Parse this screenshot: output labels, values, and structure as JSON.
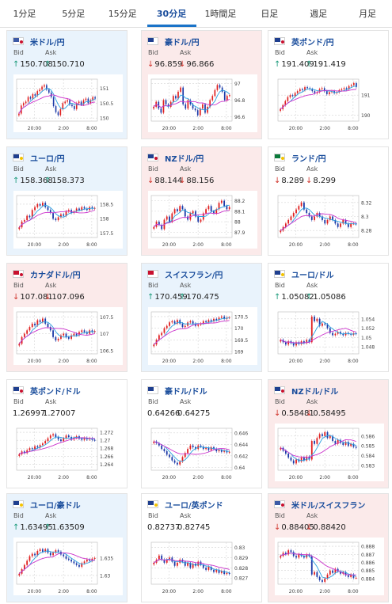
{
  "tabs": [
    {
      "label": "1分足",
      "active": false
    },
    {
      "label": "5分足",
      "active": false
    },
    {
      "label": "15分足",
      "active": false
    },
    {
      "label": "30分足",
      "active": true
    },
    {
      "label": "1時間足",
      "active": false
    },
    {
      "label": "日足",
      "active": false
    },
    {
      "label": "週足",
      "active": false
    },
    {
      "label": "月足",
      "active": false
    }
  ],
  "labels": {
    "bid": "Bid",
    "ask": "Ask"
  },
  "colors": {
    "up": "#1a9a7a",
    "down": "#d0342c",
    "candle_up": "#e02020",
    "candle_down": "#1c3aa8",
    "ma_short": "#2aa0e0",
    "ma_long": "#cc33cc",
    "card_blue": "#e9f3fc",
    "card_pink": "#fbeaea"
  },
  "cards": [
    {
      "pair": "米ドル/円",
      "flag": "us",
      "bid": "150.708",
      "ask": "150.710",
      "dir": "up",
      "bg": "blue",
      "chart": {
        "yticks": [
          "151",
          "150.5",
          "150"
        ],
        "ymin": 149.9,
        "ymax": 151.3,
        "xticks": [
          "20:00",
          "2:00",
          "8:00"
        ],
        "closes": [
          150.15,
          150.42,
          150.5,
          150.55,
          150.7,
          150.65,
          150.8,
          150.75,
          150.9,
          150.95,
          151.05,
          151.1,
          150.95,
          150.85,
          150.7,
          150.4,
          150.2,
          150.1,
          150.3,
          150.5,
          150.55,
          150.6,
          150.45,
          150.4,
          150.3,
          150.5,
          150.55,
          150.45,
          150.6,
          150.65,
          150.5,
          150.6,
          150.7,
          150.65
        ]
      }
    },
    {
      "pair": "豪ドル/円",
      "flag": "au",
      "bid": "96.859",
      "ask": "96.866",
      "dir": "down",
      "bg": "pink",
      "chart": {
        "yticks": [
          "97",
          "96.8",
          "96.6"
        ],
        "ymin": 96.55,
        "ymax": 97.05,
        "xticks": [
          "20:00",
          "2:00",
          "8:00"
        ],
        "closes": [
          96.72,
          96.78,
          96.7,
          96.65,
          96.8,
          96.75,
          96.72,
          96.78,
          96.85,
          96.82,
          96.9,
          96.95,
          96.75,
          96.7,
          96.8,
          96.75,
          96.7,
          96.68,
          96.62,
          96.7,
          96.75,
          96.65,
          96.72,
          96.8,
          96.85,
          96.92,
          96.98,
          96.95,
          96.9,
          96.8,
          96.85,
          96.86
        ]
      }
    },
    {
      "pair": "英ポンド/円",
      "flag": "gb",
      "bid": "191.409",
      "ask": "191.419",
      "dir": "up",
      "bg": "white",
      "chart": {
        "yticks": [
          "191",
          "190"
        ],
        "ymin": 189.7,
        "ymax": 191.8,
        "xticks": [
          "20:00",
          "2:00",
          "8:00"
        ],
        "closes": [
          190.3,
          190.5,
          190.7,
          190.9,
          191.0,
          190.95,
          191.1,
          191.2,
          191.3,
          191.25,
          191.4,
          191.35,
          191.3,
          191.2,
          191.1,
          191.15,
          191.3,
          191.35,
          191.2,
          191.05,
          191.15,
          191.2,
          191.1,
          191.15,
          191.25,
          191.3,
          191.35,
          191.3,
          191.45,
          191.5,
          191.6,
          191.41
        ]
      }
    },
    {
      "pair": "ユーロ/円",
      "flag": "eu",
      "bid": "158.368",
      "ask": "158.373",
      "dir": "up",
      "bg": "blue",
      "chart": {
        "yticks": [
          "158.5",
          "158",
          "157.5"
        ],
        "ymin": 157.35,
        "ymax": 158.8,
        "xticks": [
          "20:00",
          "2:00",
          "8:00"
        ],
        "closes": [
          157.7,
          157.9,
          157.95,
          158.1,
          158.05,
          158.3,
          158.4,
          158.5,
          158.45,
          158.55,
          158.4,
          158.3,
          158.2,
          158.0,
          157.95,
          158.05,
          158.15,
          158.1,
          158.25,
          158.3,
          158.2,
          158.25,
          158.35,
          158.3,
          158.4,
          158.35,
          158.3,
          158.4,
          158.35,
          158.37
        ]
      }
    },
    {
      "pair": "NZドル/円",
      "flag": "nz",
      "bid": "88.144",
      "ask": "88.156",
      "dir": "down",
      "bg": "pink",
      "chart": {
        "yticks": [
          "88.2",
          "88.1",
          "88",
          "87.9"
        ],
        "ymin": 87.85,
        "ymax": 88.25,
        "xticks": [
          "20:00",
          "2:00",
          "8:00"
        ],
        "closes": [
          87.95,
          88.0,
          87.97,
          87.93,
          88.02,
          88.05,
          88.0,
          88.08,
          88.12,
          88.1,
          88.15,
          88.12,
          88.05,
          88.02,
          88.08,
          88.1,
          88.05,
          88.0,
          88.02,
          88.08,
          88.12,
          88.15,
          88.1,
          88.08,
          88.12,
          88.18,
          88.2,
          88.15,
          88.12,
          88.14
        ]
      }
    },
    {
      "pair": "ランド/円",
      "flag": "za",
      "bid": "8.289",
      "ask": "8.299",
      "dir": "down",
      "bg": "white",
      "chart": {
        "yticks": [
          "8.32",
          "8.3",
          "8.28"
        ],
        "ymin": 8.27,
        "ymax": 8.33,
        "xticks": [
          "20:00",
          "2:00",
          "8:00"
        ],
        "closes": [
          8.28,
          8.285,
          8.29,
          8.295,
          8.3,
          8.305,
          8.31,
          8.315,
          8.32,
          8.31,
          8.305,
          8.3,
          8.295,
          8.3,
          8.305,
          8.3,
          8.295,
          8.29,
          8.295,
          8.3,
          8.295,
          8.29,
          8.285,
          8.29,
          8.295,
          8.29,
          8.285,
          8.29,
          8.29,
          8.289
        ]
      }
    },
    {
      "pair": "カナダドル/円",
      "flag": "ca",
      "bid": "107.081",
      "ask": "107.096",
      "dir": "down",
      "bg": "pink",
      "chart": {
        "yticks": [
          "107.5",
          "107",
          "106.5"
        ],
        "ymin": 106.4,
        "ymax": 107.65,
        "xticks": [
          "20:00",
          "2:00",
          "8:00"
        ],
        "closes": [
          106.7,
          106.9,
          107.0,
          107.1,
          107.2,
          107.3,
          107.25,
          107.4,
          107.35,
          107.45,
          107.3,
          107.2,
          107.1,
          106.9,
          106.8,
          106.85,
          106.95,
          107.0,
          106.9,
          106.85,
          106.95,
          107.0,
          106.95,
          107.05,
          107.1,
          107.05,
          107.0,
          107.1,
          107.05,
          107.08
        ]
      }
    },
    {
      "pair": "スイスフラン/円",
      "flag": "ch",
      "bid": "170.459",
      "ask": "170.475",
      "dir": "up",
      "bg": "blue",
      "chart": {
        "yticks": [
          "170.5",
          "170",
          "169.5",
          "169"
        ],
        "ymin": 168.9,
        "ymax": 170.7,
        "xticks": [
          "20:00",
          "2:00",
          "8:00"
        ],
        "closes": [
          169.3,
          169.5,
          169.7,
          169.8,
          170.0,
          170.1,
          170.25,
          170.3,
          170.2,
          170.35,
          170.2,
          170.05,
          170.1,
          170.25,
          170.3,
          170.2,
          170.1,
          170.15,
          170.2,
          170.3,
          170.25,
          170.35,
          170.3,
          170.4,
          170.35,
          170.45,
          170.5,
          170.4,
          170.45,
          170.46
        ]
      }
    },
    {
      "pair": "ユーロ/ドル",
      "flag": "eu",
      "bid": "1.05082",
      "ask": "1.05086",
      "dir": "up",
      "bg": "white",
      "chart": {
        "yticks": [
          "1.054",
          "1.052",
          "1.05",
          "1.048"
        ],
        "ymin": 1.0465,
        "ymax": 1.0555,
        "xticks": [
          "20:00",
          "2:00",
          "8:00"
        ],
        "closes": [
          1.0495,
          1.049,
          1.0485,
          1.0492,
          1.0488,
          1.0483,
          1.049,
          1.0486,
          1.0492,
          1.0488,
          1.0495,
          1.049,
          1.0545,
          1.0535,
          1.054,
          1.0525,
          1.053,
          1.0528,
          1.052,
          1.051,
          1.0505,
          1.0508,
          1.0512,
          1.0508,
          1.0505,
          1.051,
          1.0508,
          1.0506,
          1.0509,
          1.0508
        ]
      }
    },
    {
      "pair": "英ポンド/ドル",
      "flag": "gb",
      "bid": "1.26997",
      "ask": "1.27007",
      "dir": "none",
      "bg": "white",
      "chart": {
        "yticks": [
          "1.272",
          "1.27",
          "1.268",
          "1.266",
          "1.264"
        ],
        "ymin": 1.2625,
        "ymax": 1.273,
        "xticks": [
          "20:00",
          "2:00",
          "8:00"
        ],
        "closes": [
          1.2665,
          1.2672,
          1.2668,
          1.2675,
          1.268,
          1.2678,
          1.2685,
          1.2682,
          1.2688,
          1.2692,
          1.2698,
          1.2705,
          1.2712,
          1.2715,
          1.2708,
          1.2702,
          1.2698,
          1.2705,
          1.2712,
          1.2708,
          1.2702,
          1.2706,
          1.271,
          1.2704,
          1.2701,
          1.2706,
          1.2702,
          1.2705,
          1.2701,
          1.27
        ]
      }
    },
    {
      "pair": "豪ドル/ドル",
      "flag": "au",
      "bid": "0.64266",
      "ask": "0.64275",
      "dir": "none",
      "bg": "white",
      "chart": {
        "yticks": [
          "0.646",
          "0.644",
          "0.642",
          "0.64"
        ],
        "ymin": 0.6395,
        "ymax": 0.6468,
        "xticks": [
          "20:00",
          "2:00",
          "8:00"
        ],
        "closes": [
          0.6445,
          0.6442,
          0.6438,
          0.6432,
          0.6428,
          0.6422,
          0.6418,
          0.6412,
          0.6408,
          0.6405,
          0.641,
          0.6418,
          0.6425,
          0.6432,
          0.6438,
          0.6435,
          0.6432,
          0.6438,
          0.6436,
          0.6432,
          0.6434,
          0.643,
          0.6435,
          0.6432,
          0.6428,
          0.643,
          0.6427,
          0.6429,
          0.6426,
          0.6427
        ]
      }
    },
    {
      "pair": "NZドル/ドル",
      "flag": "nz",
      "bid": "0.58481",
      "ask": "0.58495",
      "dir": "down",
      "bg": "pink",
      "chart": {
        "yticks": [
          "0.586",
          "0.585",
          "0.584",
          "0.583"
        ],
        "ymin": 0.5825,
        "ymax": 0.5868,
        "xticks": [
          "20:00",
          "2:00",
          "8:00"
        ],
        "closes": [
          0.5848,
          0.5845,
          0.5842,
          0.5838,
          0.5835,
          0.5832,
          0.5836,
          0.5834,
          0.5838,
          0.5835,
          0.5839,
          0.5836,
          0.5855,
          0.5852,
          0.5858,
          0.5862,
          0.586,
          0.5864,
          0.5858,
          0.586,
          0.5855,
          0.5852,
          0.5856,
          0.5853,
          0.5851,
          0.5854,
          0.585,
          0.5852,
          0.5849,
          0.5848
        ]
      }
    },
    {
      "pair": "ユーロ/豪ドル",
      "flag": "eu",
      "bid": "1.63495",
      "ask": "1.63509",
      "dir": "up",
      "bg": "blue",
      "chart": {
        "yticks": [
          "1.635",
          "1.63"
        ],
        "ymin": 1.6275,
        "ymax": 1.6395,
        "xticks": [
          "20:00",
          "2:00",
          "8:00"
        ],
        "closes": [
          1.6305,
          1.6318,
          1.633,
          1.6342,
          1.6355,
          1.6362,
          1.6358,
          1.637,
          1.6375,
          1.6368,
          1.6375,
          1.6365,
          1.6358,
          1.6365,
          1.6372,
          1.6368,
          1.636,
          1.6355,
          1.6348,
          1.6345,
          1.634,
          1.6335,
          1.633,
          1.6325,
          1.6335,
          1.634,
          1.6345,
          1.6342,
          1.6348,
          1.635
        ]
      }
    },
    {
      "pair": "ユーロ/英ポンド",
      "flag": "eu",
      "bid": "0.82737",
      "ask": "0.82745",
      "dir": "none",
      "bg": "white",
      "chart": {
        "yticks": [
          "0.83",
          "0.829",
          "0.828",
          "0.827"
        ],
        "ymin": 0.8264,
        "ymax": 0.8305,
        "xticks": [
          "20:00",
          "2:00",
          "8:00"
        ],
        "closes": [
          0.8285,
          0.8288,
          0.8292,
          0.8288,
          0.8285,
          0.8288,
          0.829,
          0.8286,
          0.8282,
          0.8285,
          0.8288,
          0.8286,
          0.8282,
          0.8285,
          0.828,
          0.8284,
          0.8282,
          0.8286,
          0.8283,
          0.828,
          0.8278,
          0.8281,
          0.8278,
          0.8276,
          0.8278,
          0.8275,
          0.8277,
          0.8274,
          0.8275,
          0.8274
        ]
      }
    },
    {
      "pair": "米ドル/スイスフラン",
      "flag": "us",
      "bid": "0.88405",
      "ask": "0.88420",
      "dir": "down",
      "bg": "pink",
      "chart": {
        "yticks": [
          "0.888",
          "0.887",
          "0.886",
          "0.885",
          "0.884"
        ],
        "ymin": 0.8833,
        "ymax": 0.8885,
        "xticks": [
          "20:00",
          "2:00",
          "8:00"
        ],
        "closes": [
          0.8868,
          0.8872,
          0.887,
          0.8875,
          0.8873,
          0.8868,
          0.8866,
          0.887,
          0.8868,
          0.8866,
          0.887,
          0.8868,
          0.8845,
          0.8848,
          0.8842,
          0.8838,
          0.8836,
          0.884,
          0.8845,
          0.885,
          0.8847,
          0.8852,
          0.8849,
          0.8846,
          0.8848,
          0.8844,
          0.8842,
          0.8845,
          0.8841,
          0.8841
        ]
      }
    }
  ]
}
